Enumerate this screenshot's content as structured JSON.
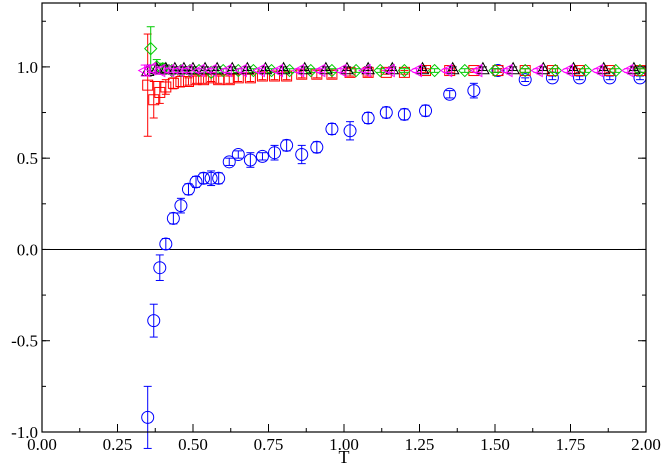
{
  "chart_data": {
    "type": "scatter",
    "title": "",
    "xlabel": "T",
    "ylabel": "",
    "xlim": [
      0.0,
      2.0
    ],
    "ylim": [
      -1.0,
      1.35
    ],
    "xticks": [
      {
        "value": 0.0,
        "label": "0.00"
      },
      {
        "value": 0.25,
        "label": "0.25"
      },
      {
        "value": 0.5,
        "label": "0.50"
      },
      {
        "value": 0.75,
        "label": "0.75"
      },
      {
        "value": 1.0,
        "label": "1.00"
      },
      {
        "value": 1.25,
        "label": "1.25"
      },
      {
        "value": 1.5,
        "label": "1.50"
      },
      {
        "value": 1.75,
        "label": "1.75"
      },
      {
        "value": 2.0,
        "label": "2.00"
      }
    ],
    "yticks": [
      {
        "value": -1.0,
        "label": "-1.0"
      },
      {
        "value": -0.5,
        "label": "-0.5"
      },
      {
        "value": 0.0,
        "label": "0.0"
      },
      {
        "value": 0.5,
        "label": "0.5"
      },
      {
        "value": 1.0,
        "label": "1.0"
      }
    ],
    "reference_line_y": 0.0,
    "grid": false,
    "legend": "none",
    "series": [
      {
        "marker": "circle",
        "color": "#0000ff",
        "points": [
          {
            "x": 0.35,
            "y": -0.92,
            "err": 0.17
          },
          {
            "x": 0.37,
            "y": -0.39,
            "err": 0.09
          },
          {
            "x": 0.39,
            "y": -0.1,
            "err": 0.07
          },
          {
            "x": 0.41,
            "y": 0.03,
            "err": 0.03
          },
          {
            "x": 0.435,
            "y": 0.17,
            "err": 0.03
          },
          {
            "x": 0.46,
            "y": 0.24,
            "err": 0.04
          },
          {
            "x": 0.485,
            "y": 0.33,
            "err": 0.03
          },
          {
            "x": 0.51,
            "y": 0.37,
            "err": 0.03
          },
          {
            "x": 0.535,
            "y": 0.39,
            "err": 0.03
          },
          {
            "x": 0.56,
            "y": 0.39,
            "err": 0.04
          },
          {
            "x": 0.585,
            "y": 0.39,
            "err": 0.03
          },
          {
            "x": 0.62,
            "y": 0.48,
            "err": 0.02
          },
          {
            "x": 0.65,
            "y": 0.52,
            "err": 0.02
          },
          {
            "x": 0.69,
            "y": 0.49,
            "err": 0.04
          },
          {
            "x": 0.73,
            "y": 0.51,
            "err": 0.02
          },
          {
            "x": 0.77,
            "y": 0.53,
            "err": 0.04
          },
          {
            "x": 0.81,
            "y": 0.57,
            "err": 0.03
          },
          {
            "x": 0.86,
            "y": 0.52,
            "err": 0.05
          },
          {
            "x": 0.91,
            "y": 0.56,
            "err": 0.03
          },
          {
            "x": 0.96,
            "y": 0.66,
            "err": 0.03
          },
          {
            "x": 1.02,
            "y": 0.65,
            "err": 0.05
          },
          {
            "x": 1.08,
            "y": 0.72,
            "err": 0.03
          },
          {
            "x": 1.14,
            "y": 0.75,
            "err": 0.03
          },
          {
            "x": 1.2,
            "y": 0.74,
            "err": 0.03
          },
          {
            "x": 1.27,
            "y": 0.76,
            "err": 0.03
          },
          {
            "x": 1.35,
            "y": 0.85,
            "err": 0.02
          },
          {
            "x": 1.43,
            "y": 0.87,
            "err": 0.04
          },
          {
            "x": 1.51,
            "y": 0.98,
            "err": 0.01
          },
          {
            "x": 1.6,
            "y": 0.93,
            "err": 0.01
          },
          {
            "x": 1.69,
            "y": 0.94,
            "err": 0.01
          },
          {
            "x": 1.78,
            "y": 0.94,
            "err": 0.01
          },
          {
            "x": 1.88,
            "y": 0.94,
            "err": 0.01
          },
          {
            "x": 1.98,
            "y": 0.94,
            "err": 0.01
          }
        ]
      },
      {
        "marker": "square",
        "color": "#ff0000",
        "points": [
          {
            "x": 0.35,
            "y": 0.9,
            "err": 0.28
          },
          {
            "x": 0.37,
            "y": 0.82,
            "err": 0.1
          },
          {
            "x": 0.39,
            "y": 0.86,
            "err": 0.06
          },
          {
            "x": 0.41,
            "y": 0.89,
            "err": 0.04
          },
          {
            "x": 0.435,
            "y": 0.91,
            "err": 0.03
          },
          {
            "x": 0.46,
            "y": 0.92,
            "err": 0.03
          },
          {
            "x": 0.485,
            "y": 0.92,
            "err": 0.02
          },
          {
            "x": 0.51,
            "y": 0.93,
            "err": 0.02
          },
          {
            "x": 0.535,
            "y": 0.93,
            "err": 0.02
          },
          {
            "x": 0.56,
            "y": 0.94,
            "err": 0.02
          },
          {
            "x": 0.585,
            "y": 0.93,
            "err": 0.02
          },
          {
            "x": 0.62,
            "y": 0.93,
            "err": 0.02
          },
          {
            "x": 0.65,
            "y": 0.94,
            "err": 0.02
          },
          {
            "x": 0.69,
            "y": 0.94,
            "err": 0.02
          },
          {
            "x": 0.73,
            "y": 0.95,
            "err": 0.02
          },
          {
            "x": 0.77,
            "y": 0.95,
            "err": 0.02
          },
          {
            "x": 0.81,
            "y": 0.95,
            "err": 0.02
          },
          {
            "x": 0.86,
            "y": 0.96,
            "err": 0.02
          },
          {
            "x": 0.91,
            "y": 0.96,
            "err": 0.02
          },
          {
            "x": 0.96,
            "y": 0.96,
            "err": 0.02
          },
          {
            "x": 1.02,
            "y": 0.97,
            "err": 0.02
          },
          {
            "x": 1.08,
            "y": 0.97,
            "err": 0.02
          },
          {
            "x": 1.14,
            "y": 0.97,
            "err": 0.01
          },
          {
            "x": 1.2,
            "y": 0.97,
            "err": 0.01
          },
          {
            "x": 1.27,
            "y": 0.98,
            "err": 0.01
          },
          {
            "x": 1.35,
            "y": 0.98,
            "err": 0.01
          },
          {
            "x": 1.43,
            "y": 0.98,
            "err": 0.01
          },
          {
            "x": 1.51,
            "y": 0.98,
            "err": 0.01
          },
          {
            "x": 1.6,
            "y": 0.98,
            "err": 0.01
          },
          {
            "x": 1.69,
            "y": 0.98,
            "err": 0.01
          },
          {
            "x": 1.78,
            "y": 0.98,
            "err": 0.01
          },
          {
            "x": 1.88,
            "y": 0.98,
            "err": 0.01
          },
          {
            "x": 1.98,
            "y": 0.98,
            "err": 0.01
          }
        ]
      },
      {
        "marker": "diamond",
        "color": "#00cc00",
        "points": [
          {
            "x": 0.36,
            "y": 1.1,
            "err": 0.12
          },
          {
            "x": 0.38,
            "y": 1.0,
            "err": 0.04
          },
          {
            "x": 0.4,
            "y": 0.99,
            "err": 0.03
          },
          {
            "x": 0.43,
            "y": 0.98,
            "err": 0.02
          },
          {
            "x": 0.46,
            "y": 0.98,
            "err": 0.02
          },
          {
            "x": 0.49,
            "y": 0.98,
            "err": 0.02
          },
          {
            "x": 0.52,
            "y": 0.98,
            "err": 0.01
          },
          {
            "x": 0.56,
            "y": 0.97,
            "err": 0.01
          },
          {
            "x": 0.6,
            "y": 0.98,
            "err": 0.01
          },
          {
            "x": 0.65,
            "y": 0.98,
            "err": 0.01
          },
          {
            "x": 0.7,
            "y": 0.98,
            "err": 0.01
          },
          {
            "x": 0.76,
            "y": 0.98,
            "err": 0.01
          },
          {
            "x": 0.82,
            "y": 0.98,
            "err": 0.01
          },
          {
            "x": 0.89,
            "y": 0.98,
            "err": 0.01
          },
          {
            "x": 0.96,
            "y": 0.98,
            "err": 0.01
          },
          {
            "x": 1.04,
            "y": 0.98,
            "err": 0.01
          },
          {
            "x": 1.12,
            "y": 0.98,
            "err": 0.01
          },
          {
            "x": 1.2,
            "y": 0.98,
            "err": 0.01
          },
          {
            "x": 1.3,
            "y": 0.98,
            "err": 0.01
          },
          {
            "x": 1.4,
            "y": 0.98,
            "err": 0.01
          },
          {
            "x": 1.5,
            "y": 0.98,
            "err": 0.01
          },
          {
            "x": 1.6,
            "y": 0.98,
            "err": 0.01
          },
          {
            "x": 1.7,
            "y": 0.98,
            "err": 0.01
          },
          {
            "x": 1.8,
            "y": 0.98,
            "err": 0.01
          },
          {
            "x": 1.9,
            "y": 0.98,
            "err": 0.01
          },
          {
            "x": 1.98,
            "y": 0.98,
            "err": 0.01
          }
        ]
      },
      {
        "marker": "triangle-up",
        "color": "#000000",
        "points": [
          {
            "x": 0.35,
            "y": 0.98,
            "err": 0.03
          },
          {
            "x": 0.38,
            "y": 0.99,
            "err": 0.02
          },
          {
            "x": 0.41,
            "y": 0.99,
            "err": 0.02
          },
          {
            "x": 0.44,
            "y": 0.99,
            "err": 0.01
          },
          {
            "x": 0.47,
            "y": 0.99,
            "err": 0.01
          },
          {
            "x": 0.5,
            "y": 0.99,
            "err": 0.01
          },
          {
            "x": 0.54,
            "y": 0.99,
            "err": 0.01
          },
          {
            "x": 0.58,
            "y": 0.99,
            "err": 0.01
          },
          {
            "x": 0.63,
            "y": 0.99,
            "err": 0.01
          },
          {
            "x": 0.68,
            "y": 0.99,
            "err": 0.01
          },
          {
            "x": 0.74,
            "y": 0.99,
            "err": 0.01
          },
          {
            "x": 0.8,
            "y": 0.99,
            "err": 0.01
          },
          {
            "x": 0.87,
            "y": 0.99,
            "err": 0.01
          },
          {
            "x": 0.94,
            "y": 0.99,
            "err": 0.01
          },
          {
            "x": 1.01,
            "y": 0.99,
            "err": 0.01
          },
          {
            "x": 1.08,
            "y": 0.99,
            "err": 0.01
          },
          {
            "x": 1.16,
            "y": 0.99,
            "err": 0.01
          },
          {
            "x": 1.26,
            "y": 0.99,
            "err": 0.01
          },
          {
            "x": 1.36,
            "y": 0.99,
            "err": 0.01
          },
          {
            "x": 1.46,
            "y": 0.99,
            "err": 0.01
          },
          {
            "x": 1.56,
            "y": 0.99,
            "err": 0.01
          },
          {
            "x": 1.66,
            "y": 0.99,
            "err": 0.01
          },
          {
            "x": 1.76,
            "y": 0.99,
            "err": 0.01
          },
          {
            "x": 1.86,
            "y": 0.99,
            "err": 0.01
          },
          {
            "x": 1.96,
            "y": 0.99,
            "err": 0.01
          }
        ]
      },
      {
        "marker": "triangle-left",
        "color": "#ff00ff",
        "points": [
          {
            "x": 0.34,
            "y": 0.98,
            "err": 0.03
          },
          {
            "x": 0.36,
            "y": 0.99,
            "err": 0.02
          },
          {
            "x": 0.39,
            "y": 0.98,
            "err": 0.02
          },
          {
            "x": 0.42,
            "y": 0.98,
            "err": 0.01
          },
          {
            "x": 0.45,
            "y": 0.98,
            "err": 0.01
          },
          {
            "x": 0.48,
            "y": 0.98,
            "err": 0.01
          },
          {
            "x": 0.52,
            "y": 0.98,
            "err": 0.01
          },
          {
            "x": 0.56,
            "y": 0.98,
            "err": 0.01
          },
          {
            "x": 0.61,
            "y": 0.98,
            "err": 0.01
          },
          {
            "x": 0.66,
            "y": 0.98,
            "err": 0.01
          },
          {
            "x": 0.72,
            "y": 0.98,
            "err": 0.01
          },
          {
            "x": 0.78,
            "y": 0.98,
            "err": 0.01
          },
          {
            "x": 0.85,
            "y": 0.98,
            "err": 0.01
          },
          {
            "x": 0.92,
            "y": 0.98,
            "err": 0.01
          },
          {
            "x": 0.99,
            "y": 0.98,
            "err": 0.01
          },
          {
            "x": 1.07,
            "y": 0.98,
            "err": 0.01
          },
          {
            "x": 1.15,
            "y": 0.98,
            "err": 0.01
          },
          {
            "x": 1.24,
            "y": 0.98,
            "err": 0.01
          },
          {
            "x": 1.34,
            "y": 0.98,
            "err": 0.01
          },
          {
            "x": 1.44,
            "y": 0.98,
            "err": 0.01
          },
          {
            "x": 1.54,
            "y": 0.98,
            "err": 0.01
          },
          {
            "x": 1.64,
            "y": 0.98,
            "err": 0.01
          },
          {
            "x": 1.74,
            "y": 0.98,
            "err": 0.01
          },
          {
            "x": 1.84,
            "y": 0.98,
            "err": 0.01
          },
          {
            "x": 1.94,
            "y": 0.98,
            "err": 0.01
          }
        ]
      }
    ]
  }
}
